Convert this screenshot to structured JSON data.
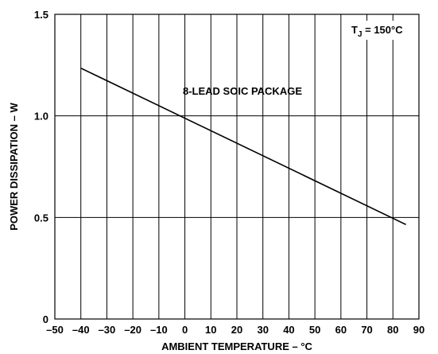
{
  "chart_data": {
    "type": "line",
    "xlabel": "AMBIENT TEMPERATURE – °C",
    "ylabel": "POWER DISSIPATION – W",
    "xlim": [
      -50,
      90
    ],
    "ylim": [
      0,
      1.5
    ],
    "xticks": [
      -50,
      -40,
      -30,
      -20,
      -10,
      0,
      10,
      20,
      30,
      40,
      50,
      60,
      70,
      80,
      90
    ],
    "xtick_labels": [
      "–50",
      "–40",
      "–30",
      "–20",
      "–10",
      "0",
      "10",
      "20",
      "30",
      "40",
      "50",
      "60",
      "70",
      "80",
      "90"
    ],
    "yticks": [
      0,
      0.5,
      1.0,
      1.5
    ],
    "ytick_labels": [
      "0",
      "0.5",
      "1.0",
      "1.5"
    ],
    "grid": true,
    "series": [
      {
        "name": "8-LEAD SOIC PACKAGE",
        "x": [
          -40,
          85
        ],
        "y": [
          1.235,
          0.465
        ]
      }
    ],
    "annotations": {
      "package_label": "8-LEAD SOIC PACKAGE",
      "tj_prefix": "T",
      "tj_subscript": "J",
      "tj_value": " = 150°C"
    }
  }
}
